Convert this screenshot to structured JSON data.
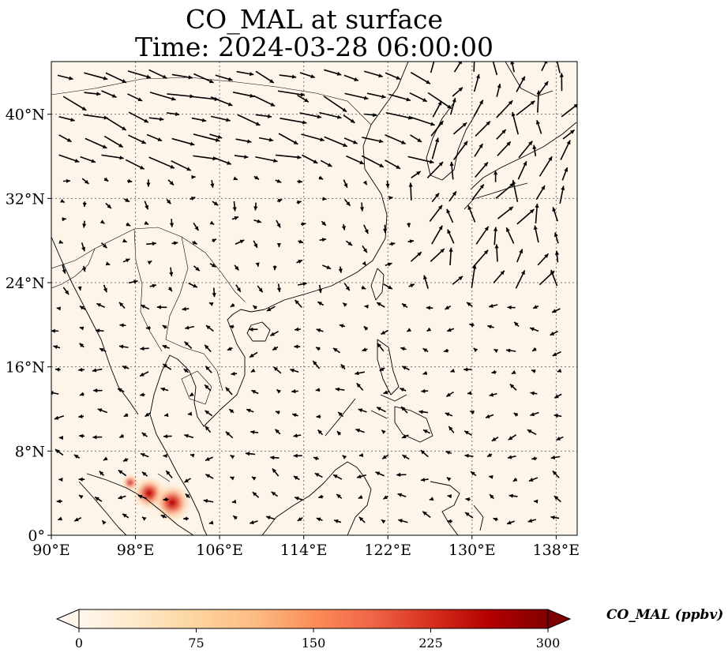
{
  "title": {
    "line1": "CO_MAL at surface",
    "line2": "Time: 2024-03-28 06:00:00"
  },
  "map": {
    "lon_range": [
      90,
      140
    ],
    "lat_range": [
      0,
      45
    ],
    "gridlines": true,
    "lon_ticks": [
      {
        "value": 90,
        "label": "90°E"
      },
      {
        "value": 98,
        "label": "98°E"
      },
      {
        "value": 106,
        "label": "106°E"
      },
      {
        "value": 114,
        "label": "114°E"
      },
      {
        "value": 122,
        "label": "122°E"
      },
      {
        "value": 130,
        "label": "130°E"
      },
      {
        "value": 138,
        "label": "138°E"
      }
    ],
    "lat_ticks": [
      {
        "value": 0,
        "label": "0°"
      },
      {
        "value": 8,
        "label": "8°N"
      },
      {
        "value": 16,
        "label": "16°N"
      },
      {
        "value": 24,
        "label": "24°N"
      },
      {
        "value": 32,
        "label": "32°N"
      },
      {
        "value": 40,
        "label": "40°N"
      }
    ],
    "background_color": "#fdf5ea",
    "hotspots": [
      {
        "lon": 99.3,
        "lat": 4.0,
        "intensity": 0.75
      },
      {
        "lon": 101.5,
        "lat": 3.1,
        "intensity": 0.9
      },
      {
        "lon": 97.5,
        "lat": 5.0,
        "intensity": 0.3
      }
    ],
    "wind_vectors_depicted": true
  },
  "colorbar": {
    "label": "CO_MAL (ppbv)",
    "min": 0,
    "max": 300,
    "extend": "both",
    "colormap": "OrRd",
    "stops": [
      "#fff7ec",
      "#fee8c8",
      "#fdd49e",
      "#fdbb84",
      "#fc8d59",
      "#ef6548",
      "#d7301f",
      "#b30000",
      "#7f0000"
    ],
    "ticks": [
      {
        "value": 0,
        "label": "0"
      },
      {
        "value": 75,
        "label": "75"
      },
      {
        "value": 150,
        "label": "150"
      },
      {
        "value": 225,
        "label": "225"
      },
      {
        "value": 300,
        "label": "300"
      }
    ]
  }
}
